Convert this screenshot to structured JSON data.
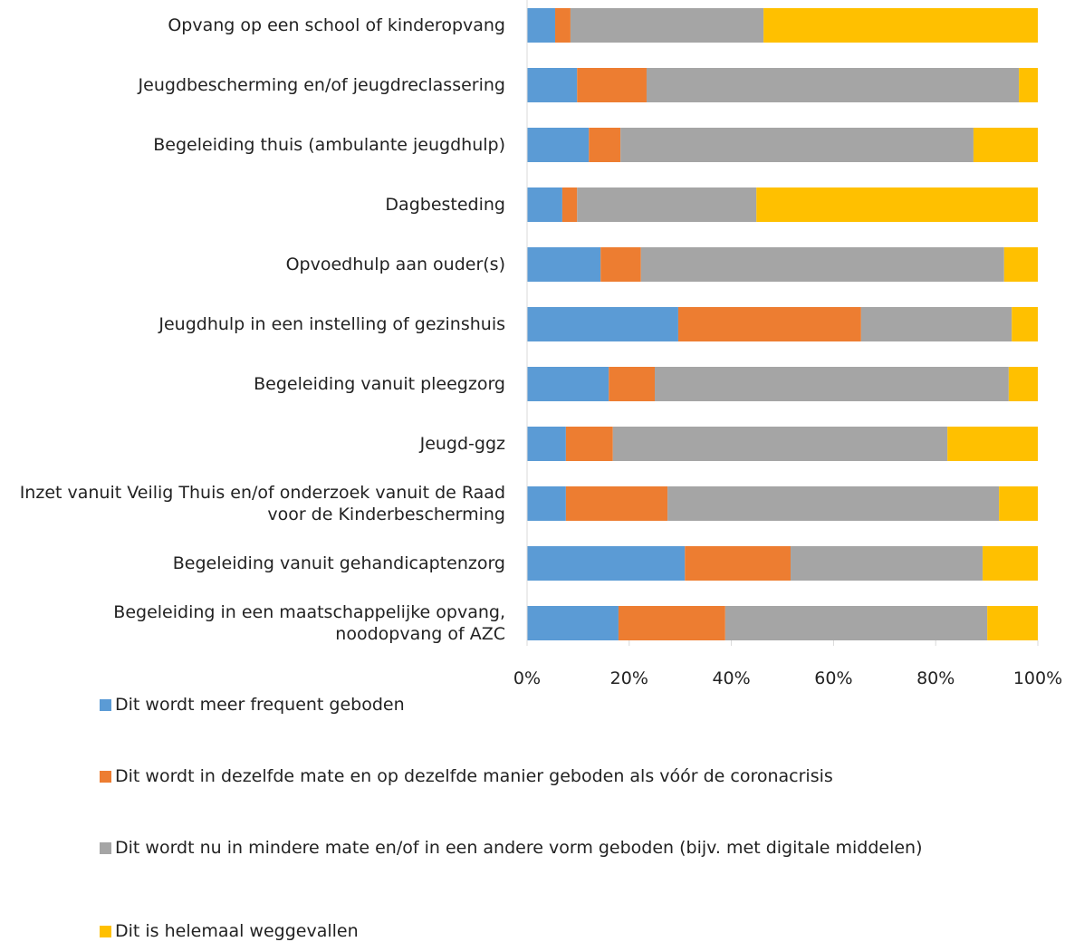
{
  "chart_data": {
    "type": "stacked_bar_horizontal",
    "categories": [
      "Opvang op een school of kinderopvang",
      "Jeugdbescherming en/of jeugdreclassering",
      "Begeleiding thuis (ambulante jeugdhulp)",
      "Dagbesteding",
      "Opvoedhulp aan ouder(s)",
      "Jeugdhulp in een instelling of gezinshuis",
      "Begeleiding vanuit pleegzorg",
      "Jeugd-ggz",
      "Inzet vanuit Veilig Thuis en/of onderzoek vanuit de Raad voor de Kinderbescherming",
      "Begeleiding vanuit gehandicaptenzorg",
      "Begeleiding in een maatschappelijke opvang, noodopvang of AZC"
    ],
    "series": [
      {
        "name": "Dit wordt meer frequent geboden",
        "color": "#5b9bd5",
        "values": [
          5.5,
          9.8,
          12.1,
          6.9,
          14.4,
          29.6,
          16.0,
          7.6,
          7.6,
          30.9,
          17.9
        ]
      },
      {
        "name": "Dit wordt in dezelfde mate en op dezelfde manier geboden als vóór de coronacrisis",
        "color": "#ed7d31",
        "values": [
          3.0,
          13.6,
          6.2,
          2.9,
          7.9,
          35.8,
          9.0,
          9.2,
          19.9,
          20.7,
          20.9
        ]
      },
      {
        "name": "Dit wordt nu in mindere mate en/of in een andere vorm geboden (bijv. met digitale middelen)",
        "color": "#a5a5a5",
        "values": [
          37.8,
          72.9,
          69.1,
          35.1,
          71.1,
          29.5,
          69.3,
          65.5,
          64.9,
          37.6,
          51.3
        ]
      },
      {
        "name": "Dit is helemaal weggevallen",
        "color": "#ffc000",
        "values": [
          53.7,
          3.7,
          12.6,
          55.1,
          6.6,
          5.1,
          5.7,
          17.7,
          7.6,
          10.8,
          9.9
        ]
      }
    ],
    "xlim": [
      0,
      100
    ],
    "xticks": [
      {
        "value": 0,
        "label": "0%"
      },
      {
        "value": 20,
        "label": "20%"
      },
      {
        "value": 40,
        "label": "40%"
      },
      {
        "value": 60,
        "label": "60%"
      },
      {
        "value": 80,
        "label": "80%"
      },
      {
        "value": 100,
        "label": "100%"
      }
    ],
    "legend": "bottom"
  }
}
